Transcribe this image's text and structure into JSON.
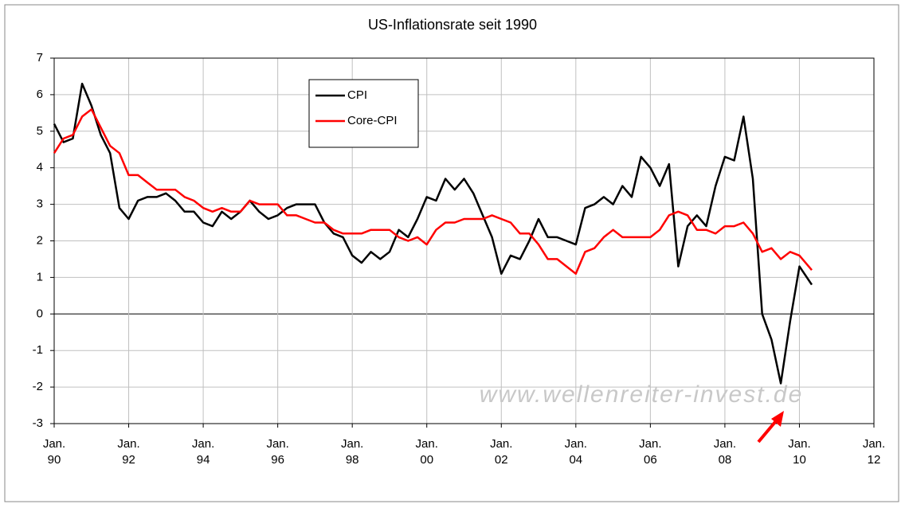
{
  "chart_data": {
    "type": "line",
    "title": "US-Inflationsrate seit 1990",
    "annotation": "www.wellenreiter-invest.de",
    "legend_position": "upper center",
    "grid": true,
    "x": [
      "1990-01",
      "1990-04",
      "1990-07",
      "1990-10",
      "1991-01",
      "1991-04",
      "1991-07",
      "1991-10",
      "1992-01",
      "1992-04",
      "1992-07",
      "1992-10",
      "1993-01",
      "1993-04",
      "1993-07",
      "1993-10",
      "1994-01",
      "1994-04",
      "1994-07",
      "1994-10",
      "1995-01",
      "1995-04",
      "1995-07",
      "1995-10",
      "1996-01",
      "1996-04",
      "1996-07",
      "1996-10",
      "1997-01",
      "1997-04",
      "1997-07",
      "1997-10",
      "1998-01",
      "1998-04",
      "1998-07",
      "1998-10",
      "1999-01",
      "1999-04",
      "1999-07",
      "1999-10",
      "2000-01",
      "2000-04",
      "2000-07",
      "2000-10",
      "2001-01",
      "2001-04",
      "2001-07",
      "2001-10",
      "2002-01",
      "2002-04",
      "2002-07",
      "2002-10",
      "2003-01",
      "2003-04",
      "2003-07",
      "2003-10",
      "2004-01",
      "2004-04",
      "2004-07",
      "2004-10",
      "2005-01",
      "2005-04",
      "2005-07",
      "2005-10",
      "2006-01",
      "2006-04",
      "2006-07",
      "2006-10",
      "2007-01",
      "2007-04",
      "2007-07",
      "2007-10",
      "2008-01",
      "2008-04",
      "2008-07",
      "2008-10",
      "2009-01",
      "2009-04",
      "2009-07",
      "2009-10",
      "2010-01",
      "2010-05"
    ],
    "series": [
      {
        "name": "CPI",
        "color": "#000000",
        "values": [
          5.2,
          4.7,
          4.8,
          6.3,
          5.7,
          4.9,
          4.4,
          2.9,
          2.6,
          3.1,
          3.2,
          3.2,
          3.3,
          3.1,
          2.8,
          2.8,
          2.5,
          2.4,
          2.8,
          2.6,
          2.8,
          3.1,
          2.8,
          2.6,
          2.7,
          2.9,
          3.0,
          3.0,
          3.0,
          2.5,
          2.2,
          2.1,
          1.6,
          1.4,
          1.7,
          1.5,
          1.7,
          2.3,
          2.1,
          2.6,
          3.2,
          3.1,
          3.7,
          3.4,
          3.7,
          3.3,
          2.7,
          2.1,
          1.1,
          1.6,
          1.5,
          2.0,
          2.6,
          2.1,
          2.1,
          2.0,
          1.9,
          2.9,
          3.0,
          3.2,
          3.0,
          3.5,
          3.2,
          4.3,
          4.0,
          3.5,
          4.1,
          1.3,
          2.4,
          2.7,
          2.4,
          3.5,
          4.3,
          4.2,
          5.4,
          3.7,
          0.0,
          -0.7,
          -1.9,
          -0.2,
          1.3,
          0.8
        ]
      },
      {
        "name": "Core-CPI",
        "color": "#ff0000",
        "values": [
          4.4,
          4.8,
          4.9,
          5.4,
          5.6,
          5.1,
          4.6,
          4.4,
          3.8,
          3.8,
          3.6,
          3.4,
          3.4,
          3.4,
          3.2,
          3.1,
          2.9,
          2.8,
          2.9,
          2.8,
          2.8,
          3.1,
          3.0,
          3.0,
          3.0,
          2.7,
          2.7,
          2.6,
          2.5,
          2.5,
          2.3,
          2.2,
          2.2,
          2.2,
          2.3,
          2.3,
          2.3,
          2.1,
          2.0,
          2.1,
          1.9,
          2.3,
          2.5,
          2.5,
          2.6,
          2.6,
          2.6,
          2.7,
          2.6,
          2.5,
          2.2,
          2.2,
          1.9,
          1.5,
          1.5,
          1.3,
          1.1,
          1.7,
          1.8,
          2.1,
          2.3,
          2.1,
          2.1,
          2.1,
          2.1,
          2.3,
          2.7,
          2.8,
          2.7,
          2.3,
          2.3,
          2.2,
          2.4,
          2.4,
          2.5,
          2.2,
          1.7,
          1.8,
          1.5,
          1.7,
          1.6,
          1.2
        ]
      }
    ],
    "xlim": [
      "1990-01",
      "2012-01"
    ],
    "xticks": [
      {
        "value": "1990-01",
        "label": "Jan.\n90"
      },
      {
        "value": "1992-01",
        "label": "Jan.\n92"
      },
      {
        "value": "1994-01",
        "label": "Jan.\n94"
      },
      {
        "value": "1996-01",
        "label": "Jan.\n96"
      },
      {
        "value": "1998-01",
        "label": "Jan.\n98"
      },
      {
        "value": "2000-01",
        "label": "Jan.\n00"
      },
      {
        "value": "2002-01",
        "label": "Jan.\n02"
      },
      {
        "value": "2004-01",
        "label": "Jan.\n04"
      },
      {
        "value": "2006-01",
        "label": "Jan.\n06"
      },
      {
        "value": "2008-01",
        "label": "Jan.\n08"
      },
      {
        "value": "2010-01",
        "label": "Jan.\n10"
      },
      {
        "value": "2012-01",
        "label": "Jan.\n12"
      }
    ],
    "ylim": [
      -3,
      7
    ],
    "yticks": [
      -3,
      -2,
      -1,
      0,
      1,
      2,
      3,
      4,
      5,
      6,
      7
    ]
  }
}
